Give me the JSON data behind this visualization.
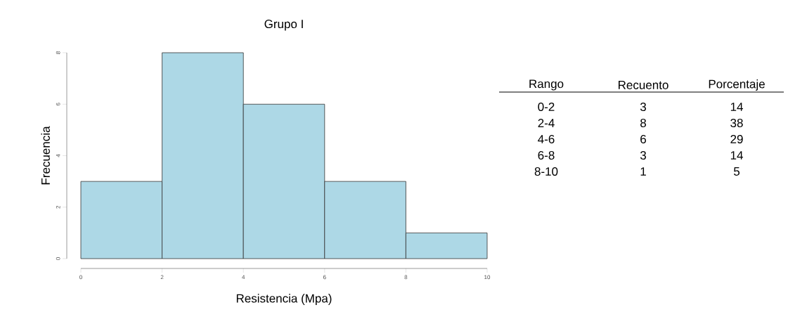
{
  "chart_data": [
    {
      "type": "histogram",
      "title": "Grupo I",
      "xlabel": "Resistencia (Mpa)",
      "ylabel": "Frecuencia",
      "bins": [
        0,
        2,
        4,
        6,
        8,
        10
      ],
      "values": [
        3,
        8,
        6,
        3,
        1
      ],
      "color": "#add8e6",
      "xlim": [
        0,
        10
      ],
      "ylim": [
        0,
        8
      ],
      "xticks": [
        0,
        2,
        4,
        6,
        8,
        10
      ],
      "yticks": [
        0,
        2,
        4,
        6,
        8
      ]
    },
    {
      "type": "other",
      "annotations": [
        "Rango",
        "Recuento",
        "Porcentaje",
        "0-2",
        "3",
        "14",
        "2-4",
        "8",
        "38",
        "4-6",
        "6",
        "29",
        "6-8",
        "3",
        "14",
        "8-10",
        "1",
        "5"
      ]
    }
  ]
}
